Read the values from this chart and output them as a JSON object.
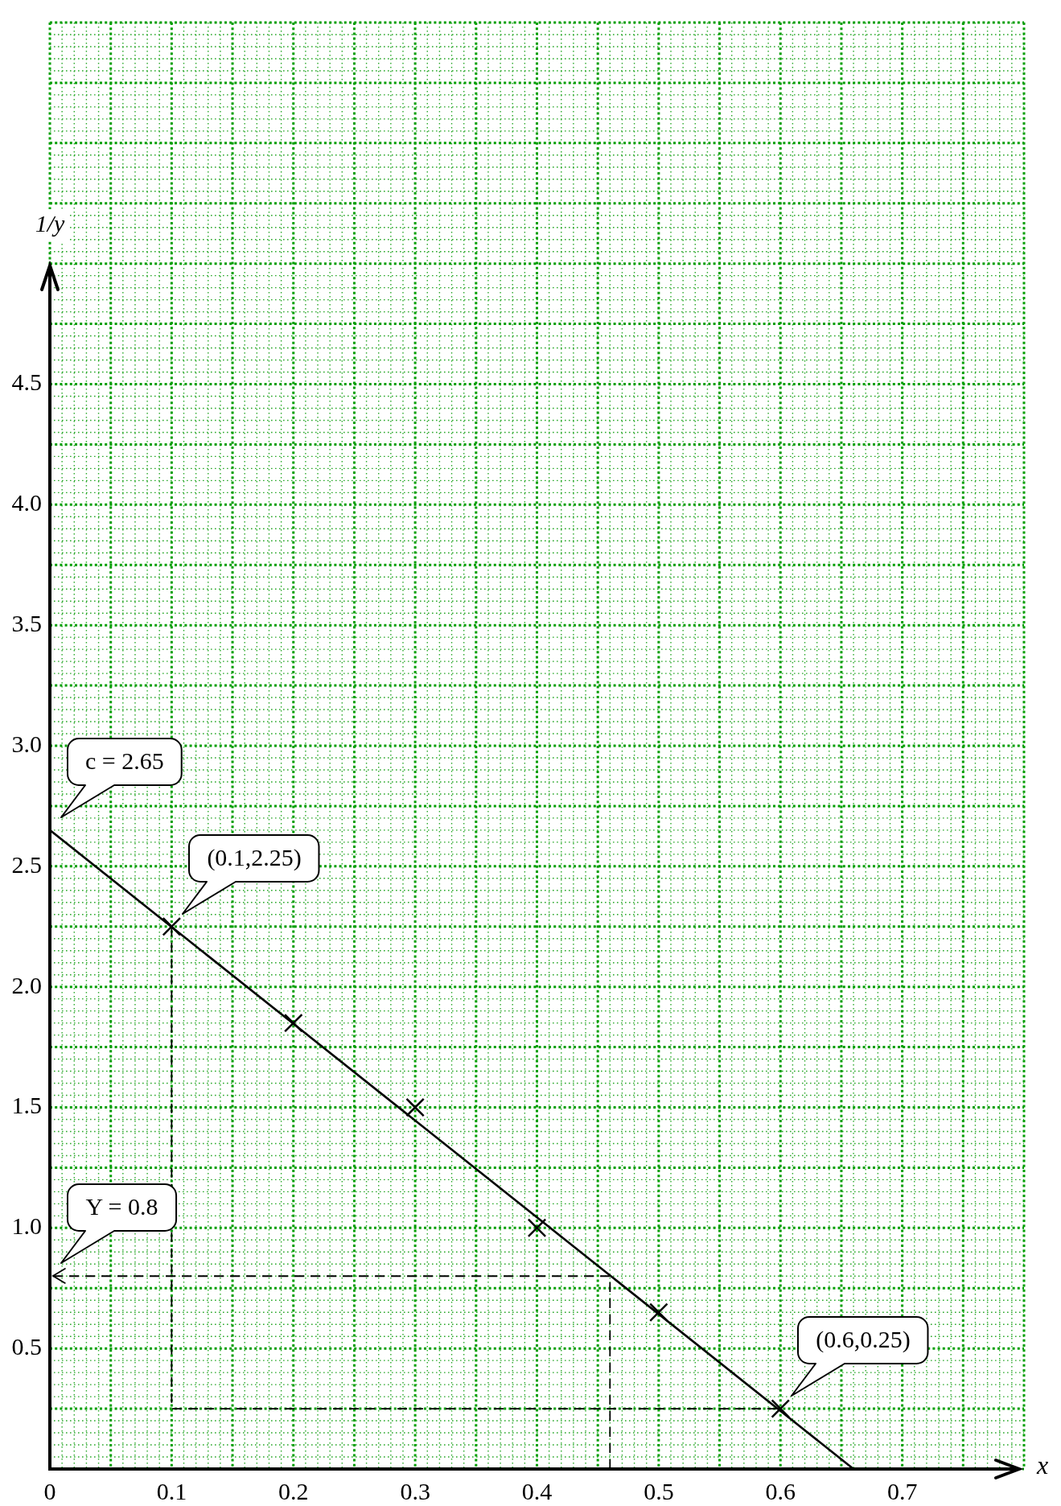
{
  "chart_data": {
    "type": "scatter",
    "xlabel": "x",
    "ylabel": "1/y",
    "grid": true,
    "xlim": [
      0,
      0.8
    ],
    "ylim": [
      0,
      6
    ],
    "xticks": [
      0,
      {
        "value": 0.01,
        "label": null
      },
      {
        "value": 0.02,
        "label": null
      },
      {
        "value": 0.03,
        "label": null
      },
      {
        "value": 0.04,
        "label": null
      },
      {
        "value": 0.05,
        "label": null
      },
      {
        "value": 0.06,
        "label": null
      },
      {
        "value": 0.07,
        "label": null
      },
      {
        "value": 0.08,
        "label": null
      },
      {
        "value": 0.09,
        "label": null
      },
      0.1,
      {
        "value": 0.11,
        "label": null
      },
      {
        "value": 0.12,
        "label": null
      },
      {
        "value": 0.13,
        "label": null
      },
      {
        "value": 0.14,
        "label": null
      },
      {
        "value": 0.15,
        "label": null
      },
      {
        "value": 0.16,
        "label": null
      },
      {
        "value": 0.17,
        "label": null
      },
      {
        "value": 0.18,
        "label": null
      },
      {
        "value": 0.19,
        "label": null
      },
      0.2,
      {
        "value": 0.21,
        "label": null
      },
      {
        "value": 0.22,
        "label": null
      },
      {
        "value": 0.23,
        "label": null
      },
      {
        "value": 0.24,
        "label": null
      },
      {
        "value": 0.25,
        "label": null
      },
      {
        "value": 0.26,
        "label": null
      },
      {
        "value": 0.27,
        "label": null
      },
      {
        "value": 0.28,
        "label": null
      },
      {
        "value": 0.29,
        "label": null
      },
      0.3,
      {
        "value": 0.31,
        "label": null
      },
      {
        "value": 0.32,
        "label": null
      },
      {
        "value": 0.33,
        "label": null
      },
      {
        "value": 0.34,
        "label": null
      },
      {
        "value": 0.35,
        "label": null
      },
      {
        "value": 0.36,
        "label": null
      },
      {
        "value": 0.37,
        "label": null
      },
      {
        "value": 0.38,
        "label": null
      },
      {
        "value": 0.39,
        "label": null
      },
      0.4,
      {
        "value": 0.41,
        "label": null
      },
      {
        "value": 0.42,
        "label": null
      },
      {
        "value": 0.43,
        "label": null
      },
      {
        "value": 0.44,
        "label": null
      },
      {
        "value": 0.45,
        "label": null
      },
      {
        "value": 0.46,
        "label": null
      },
      {
        "value": 0.47,
        "label": null
      },
      {
        "value": 0.48,
        "label": null
      },
      {
        "value": 0.49,
        "label": null
      },
      0.5,
      {
        "value": 0.51,
        "label": null
      },
      {
        "value": 0.52,
        "label": null
      },
      {
        "value": 0.53,
        "label": null
      },
      {
        "value": 0.54,
        "label": null
      },
      {
        "value": 0.55,
        "label": null
      },
      {
        "value": 0.56,
        "label": null
      },
      {
        "value": 0.57,
        "label": null
      },
      {
        "value": 0.58,
        "label": null
      },
      {
        "value": 0.59,
        "label": null
      },
      0.6,
      {
        "value": 0.61,
        "label": null
      },
      {
        "value": 0.62,
        "label": null
      },
      {
        "value": 0.63,
        "label": null
      },
      {
        "value": 0.64,
        "label": null
      },
      {
        "value": 0.65,
        "label": null
      },
      {
        "value": 0.66,
        "label": null
      },
      {
        "value": 0.67,
        "label": null
      },
      {
        "value": 0.68,
        "label": null
      },
      {
        "value": 0.69,
        "label": null
      },
      0.7,
      {
        "value": 0.71,
        "label": null
      },
      {
        "value": 0.72,
        "label": null
      },
      {
        "value": 0.73,
        "label": null
      },
      {
        "value": 0.74,
        "label": null
      },
      {
        "value": 0.75,
        "label": null
      },
      {
        "value": 0.76,
        "label": null
      },
      {
        "value": 0.77,
        "label": null
      },
      {
        "value": 0.78,
        "label": null
      },
      {
        "value": 0.79,
        "label": null
      },
      {
        "value": 0.8,
        "label": null
      }
    ],
    "yticks": [
      {
        "value": 0,
        "label": null
      },
      {
        "value": 0.05,
        "label": null
      },
      {
        "value": 0.1,
        "label": null
      },
      {
        "value": 0.15,
        "label": null
      },
      {
        "value": 0.2,
        "label": null
      },
      {
        "value": 0.25,
        "label": null
      },
      {
        "value": 0.3,
        "label": null
      },
      {
        "value": 0.35,
        "label": null
      },
      {
        "value": 0.4,
        "label": null
      },
      {
        "value": 0.45,
        "label": null
      },
      0.5,
      {
        "value": 0.55,
        "label": null
      },
      {
        "value": 0.6,
        "label": null
      },
      {
        "value": 0.65,
        "label": null
      },
      {
        "value": 0.7,
        "label": null
      },
      {
        "value": 0.75,
        "label": null
      },
      {
        "value": 0.8,
        "label": null
      },
      {
        "value": 0.85,
        "label": null
      },
      {
        "value": 0.9,
        "label": null
      },
      {
        "value": 0.95,
        "label": null
      },
      {
        "value": 1,
        "label": "1.0"
      },
      {
        "value": 1.05,
        "label": null
      },
      {
        "value": 1.1,
        "label": null
      },
      {
        "value": 1.15,
        "label": null
      },
      {
        "value": 1.2,
        "label": null
      },
      {
        "value": 1.25,
        "label": null
      },
      {
        "value": 1.3,
        "label": null
      },
      {
        "value": 1.35,
        "label": null
      },
      {
        "value": 1.4,
        "label": null
      },
      {
        "value": 1.45,
        "label": null
      },
      1.5,
      {
        "value": 1.55,
        "label": null
      },
      {
        "value": 1.6,
        "label": null
      },
      {
        "value": 1.65,
        "label": null
      },
      {
        "value": 1.7,
        "label": null
      },
      {
        "value": 1.75,
        "label": null
      },
      {
        "value": 1.8,
        "label": null
      },
      {
        "value": 1.85,
        "label": null
      },
      {
        "value": 1.9,
        "label": null
      },
      {
        "value": 1.95,
        "label": null
      },
      {
        "value": 2,
        "label": "2.0"
      },
      {
        "value": 2.05,
        "label": null
      },
      {
        "value": 2.1,
        "label": null
      },
      {
        "value": 2.15,
        "label": null
      },
      {
        "value": 2.2,
        "label": null
      },
      {
        "value": 2.25,
        "label": null
      },
      {
        "value": 2.3,
        "label": null
      },
      {
        "value": 2.35,
        "label": null
      },
      {
        "value": 2.4,
        "label": null
      },
      {
        "value": 2.45,
        "label": null
      },
      2.5,
      {
        "value": 2.55,
        "label": null
      },
      {
        "value": 2.6,
        "label": null
      },
      {
        "value": 2.65,
        "label": null
      },
      {
        "value": 2.7,
        "label": null
      },
      {
        "value": 2.75,
        "label": null
      },
      {
        "value": 2.8,
        "label": null
      },
      {
        "value": 2.85,
        "label": null
      },
      {
        "value": 2.9,
        "label": null
      },
      {
        "value": 2.95,
        "label": null
      },
      {
        "value": 3,
        "label": "3.0"
      },
      {
        "value": 3.05,
        "label": null
      },
      {
        "value": 3.1,
        "label": null
      },
      {
        "value": 3.15,
        "label": null
      },
      {
        "value": 3.2,
        "label": null
      },
      {
        "value": 3.25,
        "label": null
      },
      {
        "value": 3.3,
        "label": null
      },
      {
        "value": 3.35,
        "label": null
      },
      {
        "value": 3.4,
        "label": null
      },
      {
        "value": 3.45,
        "label": null
      },
      3.5,
      {
        "value": 3.55,
        "label": null
      },
      {
        "value": 3.6,
        "label": null
      },
      {
        "value": 3.65,
        "label": null
      },
      {
        "value": 3.7,
        "label": null
      },
      {
        "value": 3.75,
        "label": null
      },
      {
        "value": 3.8,
        "label": null
      },
      {
        "value": 3.85,
        "label": null
      },
      {
        "value": 3.9,
        "label": null
      },
      {
        "value": 3.95,
        "label": null
      },
      {
        "value": 4,
        "label": "4.0"
      },
      {
        "value": 4.05,
        "label": null
      },
      {
        "value": 4.1,
        "label": null
      },
      {
        "value": 4.15,
        "label": null
      },
      {
        "value": 4.2,
        "label": null
      },
      {
        "value": 4.25,
        "label": null
      },
      {
        "value": 4.3,
        "label": null
      },
      {
        "value": 4.35,
        "label": null
      },
      {
        "value": 4.4,
        "label": null
      },
      {
        "value": 4.45,
        "label": null
      },
      4.5,
      {
        "value": 4.55,
        "label": null
      },
      {
        "value": 4.6,
        "label": null
      },
      {
        "value": 4.65,
        "label": null
      },
      {
        "value": 4.7,
        "label": null
      },
      {
        "value": 4.75,
        "label": null
      },
      {
        "value": 4.8,
        "label": null
      },
      {
        "value": 4.85,
        "label": null
      },
      {
        "value": 4.9,
        "label": null
      },
      {
        "value": 4.95,
        "label": null
      },
      {
        "value": 5,
        "label": null
      },
      {
        "value": 5.05,
        "label": null
      },
      {
        "value": 5.1,
        "label": null
      },
      {
        "value": 5.15,
        "label": null
      },
      {
        "value": 5.2,
        "label": null
      },
      {
        "value": 5.25,
        "label": null
      },
      {
        "value": 5.3,
        "label": null
      },
      {
        "value": 5.35,
        "label": null
      },
      {
        "value": 5.4,
        "label": null
      },
      {
        "value": 5.45,
        "label": null
      },
      {
        "value": 5.5,
        "label": null
      },
      {
        "value": 5.55,
        "label": null
      },
      {
        "value": 5.6,
        "label": null
      },
      {
        "value": 5.65,
        "label": null
      },
      {
        "value": 5.7,
        "label": null
      },
      {
        "value": 5.75,
        "label": null
      },
      {
        "value": 5.8,
        "label": null
      },
      {
        "value": 5.85,
        "label": null
      },
      {
        "value": 5.9,
        "label": null
      },
      {
        "value": 5.95,
        "label": null
      },
      {
        "value": 6,
        "label": null
      }
    ],
    "series": [
      {
        "marker": "cross",
        "color": "#000000",
        "x": [
          0.1,
          0.2,
          0.3,
          0.4,
          0.5,
          0.6
        ],
        "values": [
          2.25,
          1.85,
          1.5,
          1.0,
          0.65,
          0.25
        ]
      },
      {
        "type": "line",
        "color": "#000000",
        "x": [
          0,
          0.66
        ],
        "values": [
          2.65,
          0
        ]
      },
      {
        "type": "line",
        "line_style": "dashed",
        "color": "#000000",
        "x": [
          0.1,
          0.1,
          0.6
        ],
        "values": [
          2.25,
          0.25,
          0.25
        ]
      },
      {
        "type": "line",
        "line_style": "dashed",
        "color": "#000000",
        "x": [
          0.46,
          0.46,
          0
        ],
        "values": [
          0,
          0.8,
          0.8
        ]
      }
    ],
    "annotations": [
      {
        "text": "c = 2.65",
        "x": 0,
        "y": 2.65
      },
      {
        "text": "(0.1,2.25)",
        "x": 0.1,
        "y": 2.25
      },
      {
        "text": "Y = 0.8",
        "x": 0,
        "y": 0.8
      },
      {
        "text": "(0.6,0.25)",
        "x": 0.6,
        "y": 0.25
      }
    ]
  }
}
